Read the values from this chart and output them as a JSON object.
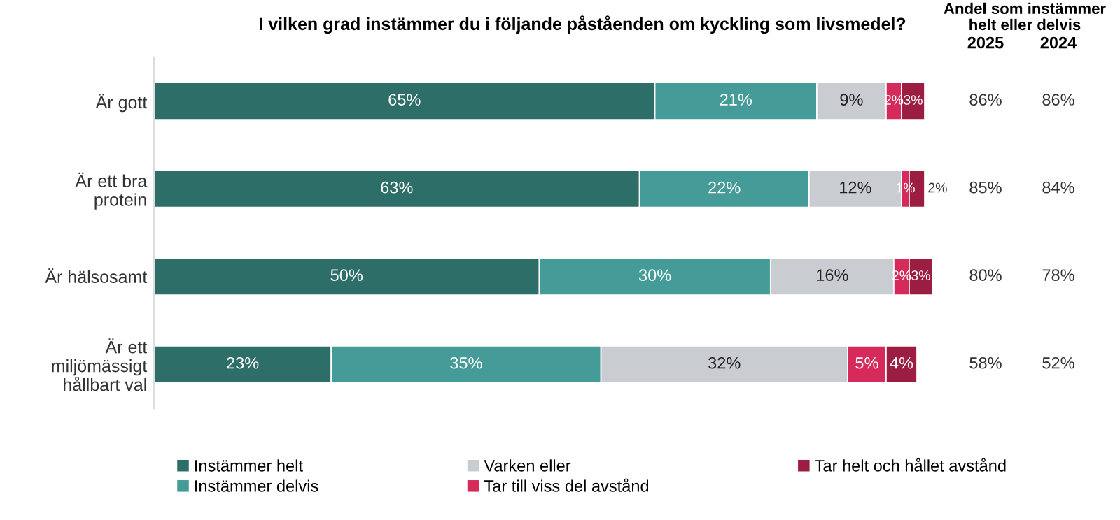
{
  "chart_data": {
    "type": "bar",
    "orientation": "horizontal",
    "stacked": true,
    "title": "I vilken grad instämmer du i följande påståenden om kyckling som livsmedel?",
    "categories": [
      "Är gott",
      "Är ett bra\nprotein",
      "Är hälsosamt",
      "Är ett\nmiljömässigt\nhållbart val"
    ],
    "series": [
      {
        "name": "Instämmer helt",
        "color": "#2e6e68",
        "values": [
          65,
          63,
          50,
          23
        ],
        "value_labels": [
          "65%",
          "63%",
          "50%",
          "23%"
        ]
      },
      {
        "name": "Instämmer delvis",
        "color": "#449b98",
        "values": [
          21,
          22,
          30,
          35
        ],
        "value_labels": [
          "21%",
          "22%",
          "30%",
          "35%"
        ]
      },
      {
        "name": "Varken eller",
        "color": "#c9ccd1",
        "values": [
          9,
          12,
          16,
          32
        ],
        "value_labels": [
          "9%",
          "12%",
          "16%",
          "32%"
        ]
      },
      {
        "name": "Tar till viss del avstånd",
        "color": "#d62a5a",
        "values": [
          2,
          1,
          2,
          5
        ],
        "value_labels": [
          "2%",
          "1%",
          "2%",
          "5%"
        ]
      },
      {
        "name": "Tar helt och hållet avstånd",
        "color": "#9b1d42",
        "values": [
          3,
          2,
          3,
          4
        ],
        "value_labels": [
          "3%",
          "2%",
          "3%",
          "4%"
        ]
      }
    ],
    "legend": "bottom",
    "annotations": [
      "Andel som instämmer\nhelt eller delvis",
      "2025",
      "2024",
      "86%",
      "86%",
      "85%",
      "84%",
      "80%",
      "78%",
      "58%",
      "52%"
    ]
  }
}
